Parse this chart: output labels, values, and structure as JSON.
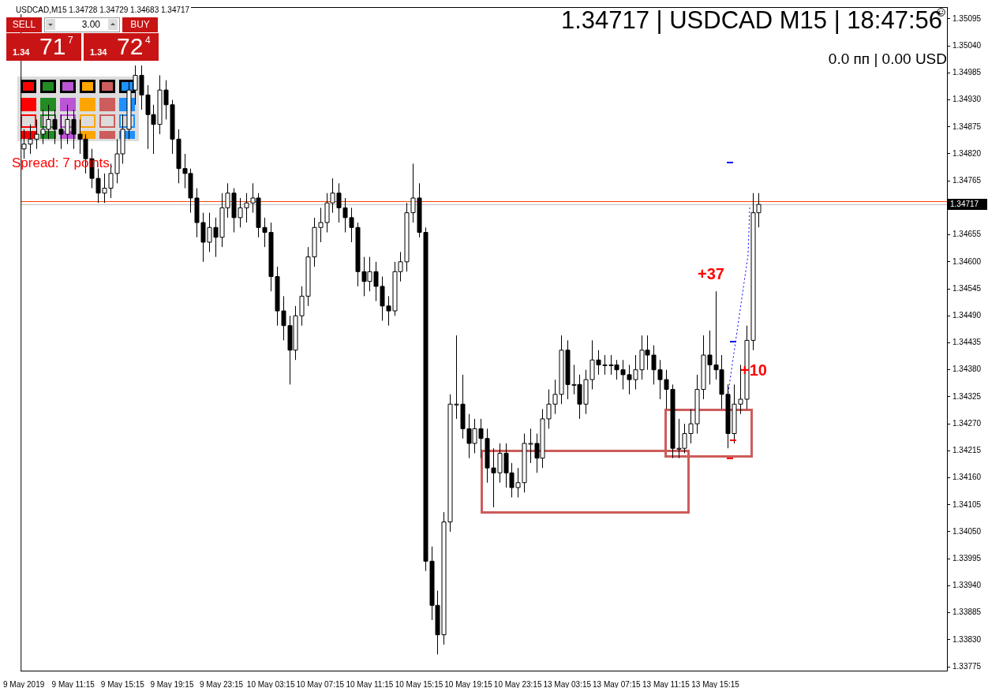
{
  "chart_data": {
    "type": "candlestick",
    "title": "1.34717 | USDCAD M15 | 18:47:56",
    "subtitle": "USDCAD,M15  1.34728 1.34729 1.34683 1.34717",
    "annotations": [
      "0.0 пп | 0.00 USD",
      "Spread: 7 points.",
      "+37",
      "+10",
      "SELL",
      "3.00",
      "BUY",
      "1.34",
      "71",
      "7",
      "1.34",
      "72",
      "4"
    ],
    "categories": [
      "9 May 2019",
      null,
      null,
      null,
      null,
      null,
      null,
      null,
      "9 May 11:15",
      null,
      null,
      null,
      null,
      null,
      null,
      null,
      "9 May 15:15",
      null,
      null,
      null,
      null,
      null,
      null,
      null,
      "9 May 19:15",
      null,
      null,
      null,
      null,
      null,
      null,
      null,
      "9 May 23:15",
      null,
      null,
      null,
      null,
      null,
      null,
      null,
      "10 May 03:15",
      null,
      null,
      null,
      null,
      null,
      null,
      null,
      "10 May 07:15",
      null,
      null,
      null,
      null,
      null,
      null,
      null,
      "10 May 11:15",
      null,
      null,
      null,
      null,
      null,
      null,
      null,
      "10 May 15:15",
      null,
      null,
      null,
      null,
      null,
      null,
      null,
      "10 May 19:15",
      null,
      null,
      null,
      null,
      null,
      null,
      null,
      "10 May 23:15",
      null,
      null,
      null,
      null,
      null,
      null,
      null,
      "13 May 03:15",
      null,
      null,
      null,
      null,
      null,
      null,
      null,
      "13 May 07:15",
      null,
      null,
      null,
      null,
      null,
      null,
      null,
      "13 May 11:15",
      null,
      null,
      null,
      null,
      null,
      null,
      null,
      "13 May 15:15",
      null,
      null,
      null,
      null,
      null,
      null,
      null,
      null,
      null,
      null,
      null,
      null,
      null,
      null,
      null,
      null,
      null,
      null,
      null,
      null,
      null,
      null,
      null,
      null,
      null,
      null,
      null,
      null,
      null,
      null,
      null,
      null,
      null,
      null,
      null,
      null,
      null
    ],
    "ohlc": [
      [
        1.3483,
        1.3487,
        1.3481,
        1.3484
      ],
      [
        1.3484,
        1.3488,
        1.3482,
        1.3485
      ],
      [
        1.3485,
        1.3489,
        1.3483,
        1.3486
      ],
      [
        1.3486,
        1.3491,
        1.3484,
        1.3487
      ],
      [
        1.3487,
        1.3492,
        1.3485,
        1.3489
      ],
      [
        1.3489,
        1.3491,
        1.3484,
        1.3487
      ],
      [
        1.3487,
        1.349,
        1.3483,
        1.3486
      ],
      [
        1.3486,
        1.3492,
        1.3484,
        1.3489
      ],
      [
        1.3489,
        1.3491,
        1.3483,
        1.3486
      ],
      [
        1.3486,
        1.3489,
        1.3482,
        1.3485
      ],
      [
        1.3485,
        1.3486,
        1.3478,
        1.3481
      ],
      [
        1.3481,
        1.3483,
        1.3475,
        1.3477
      ],
      [
        1.3477,
        1.3479,
        1.3472,
        1.3474
      ],
      [
        1.3474,
        1.3478,
        1.3472,
        1.3475
      ],
      [
        1.3475,
        1.348,
        1.3473,
        1.3478
      ],
      [
        1.3478,
        1.3485,
        1.3476,
        1.3482
      ],
      [
        1.3482,
        1.349,
        1.348,
        1.3487
      ],
      [
        1.3487,
        1.3497,
        1.3485,
        1.3495
      ],
      [
        1.3495,
        1.35,
        1.3492,
        1.3498
      ],
      [
        1.3498,
        1.35,
        1.3491,
        1.3494
      ],
      [
        1.3494,
        1.3496,
        1.3483,
        1.349
      ],
      [
        1.349,
        1.3492,
        1.3482,
        1.3488
      ],
      [
        1.3488,
        1.3498,
        1.3486,
        1.3495
      ],
      [
        1.3495,
        1.3497,
        1.3489,
        1.3492
      ],
      [
        1.3492,
        1.3493,
        1.3482,
        1.3485
      ],
      [
        1.3485,
        1.3487,
        1.3476,
        1.3479
      ],
      [
        1.3479,
        1.3482,
        1.3475,
        1.3478
      ],
      [
        1.3478,
        1.3479,
        1.347,
        1.3473
      ],
      [
        1.3473,
        1.3475,
        1.3465,
        1.3468
      ],
      [
        1.3468,
        1.347,
        1.346,
        1.3464
      ],
      [
        1.3464,
        1.347,
        1.3462,
        1.3467
      ],
      [
        1.3467,
        1.3469,
        1.3461,
        1.3465
      ],
      [
        1.3465,
        1.3474,
        1.3463,
        1.3471
      ],
      [
        1.3471,
        1.3476,
        1.3469,
        1.3474
      ],
      [
        1.3474,
        1.3475,
        1.3466,
        1.3469
      ],
      [
        1.3469,
        1.3473,
        1.3467,
        1.3471
      ],
      [
        1.3471,
        1.3474,
        1.3468,
        1.3472
      ],
      [
        1.3472,
        1.3476,
        1.347,
        1.3473
      ],
      [
        1.3473,
        1.3474,
        1.3465,
        1.3467
      ],
      [
        1.3467,
        1.3469,
        1.3463,
        1.3466
      ],
      [
        1.3466,
        1.3468,
        1.3454,
        1.3457
      ],
      [
        1.3457,
        1.3459,
        1.3447,
        1.345
      ],
      [
        1.345,
        1.3453,
        1.3444,
        1.3447
      ],
      [
        1.3447,
        1.3449,
        1.3435,
        1.3442
      ],
      [
        1.3442,
        1.3451,
        1.344,
        1.3449
      ],
      [
        1.3449,
        1.3455,
        1.3447,
        1.3453
      ],
      [
        1.3453,
        1.3463,
        1.3451,
        1.3461
      ],
      [
        1.3461,
        1.3469,
        1.3459,
        1.3467
      ],
      [
        1.3467,
        1.3471,
        1.3464,
        1.3468
      ],
      [
        1.3468,
        1.3474,
        1.3466,
        1.3472
      ],
      [
        1.3472,
        1.3477,
        1.347,
        1.3474
      ],
      [
        1.3474,
        1.3476,
        1.3468,
        1.3471
      ],
      [
        1.3471,
        1.3473,
        1.3466,
        1.3469
      ],
      [
        1.3469,
        1.3471,
        1.3464,
        1.3467
      ],
      [
        1.3467,
        1.3468,
        1.3455,
        1.3458
      ],
      [
        1.3458,
        1.3461,
        1.3453,
        1.3456
      ],
      [
        1.3456,
        1.3461,
        1.3454,
        1.3458
      ],
      [
        1.3458,
        1.346,
        1.3452,
        1.3455
      ],
      [
        1.3455,
        1.3457,
        1.3448,
        1.3451
      ],
      [
        1.3451,
        1.3453,
        1.3447,
        1.345
      ],
      [
        1.345,
        1.346,
        1.3449,
        1.3458
      ],
      [
        1.3458,
        1.3462,
        1.3456,
        1.346
      ],
      [
        1.346,
        1.3472,
        1.3458,
        1.347
      ],
      [
        1.347,
        1.348,
        1.3468,
        1.3473
      ],
      [
        1.3473,
        1.3476,
        1.3465,
        1.3466
      ],
      [
        1.3466,
        1.3467,
        1.3397,
        1.3399
      ],
      [
        1.3399,
        1.3402,
        1.3387,
        1.339
      ],
      [
        1.339,
        1.3393,
        1.338,
        1.3384
      ],
      [
        1.3384,
        1.3409,
        1.3382,
        1.3407
      ],
      [
        1.3407,
        1.3433,
        1.3405,
        1.3431
      ],
      [
        1.3431,
        1.3445,
        1.3428,
        1.3431
      ],
      [
        1.3431,
        1.3437,
        1.3424,
        1.3426
      ],
      [
        1.3426,
        1.3429,
        1.342,
        1.3423
      ],
      [
        1.3423,
        1.3428,
        1.3421,
        1.3426
      ],
      [
        1.3426,
        1.3428,
        1.342,
        1.3424
      ],
      [
        1.3424,
        1.3426,
        1.3415,
        1.3418
      ],
      [
        1.3418,
        1.3422,
        1.341,
        1.3417
      ],
      [
        1.3417,
        1.3423,
        1.3415,
        1.3421
      ],
      [
        1.3421,
        1.3423,
        1.3414,
        1.3417
      ],
      [
        1.3417,
        1.3419,
        1.3412,
        1.3414
      ],
      [
        1.3414,
        1.3418,
        1.3412,
        1.3415
      ],
      [
        1.3415,
        1.3425,
        1.3413,
        1.3423
      ],
      [
        1.3423,
        1.3426,
        1.3419,
        1.3423
      ],
      [
        1.3423,
        1.3425,
        1.3417,
        1.342
      ],
      [
        1.342,
        1.343,
        1.3418,
        1.3428
      ],
      [
        1.3428,
        1.3434,
        1.3426,
        1.3431
      ],
      [
        1.3431,
        1.3436,
        1.3429,
        1.3433
      ],
      [
        1.3433,
        1.3445,
        1.3431,
        1.3442
      ],
      [
        1.3442,
        1.3444,
        1.3432,
        1.3435
      ],
      [
        1.3435,
        1.3439,
        1.3433,
        1.3435
      ],
      [
        1.3435,
        1.3437,
        1.3428,
        1.3431
      ],
      [
        1.3431,
        1.3438,
        1.3429,
        1.3436
      ],
      [
        1.3436,
        1.3444,
        1.3434,
        1.344
      ],
      [
        1.344,
        1.3442,
        1.3437,
        1.3439
      ],
      [
        1.3439,
        1.3441,
        1.3437,
        1.3439
      ],
      [
        1.3439,
        1.3441,
        1.3437,
        1.3439
      ],
      [
        1.3439,
        1.344,
        1.3436,
        1.3438
      ],
      [
        1.3438,
        1.344,
        1.3434,
        1.3437
      ],
      [
        1.3437,
        1.3439,
        1.3433,
        1.3436
      ],
      [
        1.3436,
        1.3441,
        1.3434,
        1.3438
      ],
      [
        1.3438,
        1.3445,
        1.3436,
        1.3442
      ],
      [
        1.3442,
        1.3445,
        1.3438,
        1.3441
      ],
      [
        1.3441,
        1.3443,
        1.3435,
        1.3438
      ],
      [
        1.3438,
        1.344,
        1.3432,
        1.3436
      ],
      [
        1.3436,
        1.3438,
        1.343,
        1.3434
      ],
      [
        1.3434,
        1.3435,
        1.342,
        1.3422
      ],
      [
        1.3422,
        1.3428,
        1.342,
        1.3422
      ],
      [
        1.3422,
        1.3427,
        1.3421,
        1.3425
      ],
      [
        1.3425,
        1.343,
        1.3423,
        1.3427
      ],
      [
        1.3427,
        1.3437,
        1.3425,
        1.3434
      ],
      [
        1.3434,
        1.3445,
        1.3432,
        1.3441
      ],
      [
        1.3441,
        1.3446,
        1.3435,
        1.3439
      ],
      [
        1.3439,
        1.3454,
        1.3436,
        1.3438
      ],
      [
        1.3438,
        1.3441,
        1.343,
        1.3433
      ],
      [
        1.3433,
        1.3435,
        1.3422,
        1.3425
      ],
      [
        1.3425,
        1.3435,
        1.3423,
        1.3431
      ],
      [
        1.3431,
        1.3439,
        1.3429,
        1.3432
      ],
      [
        1.3432,
        1.3447,
        1.343,
        1.3444
      ],
      [
        1.3444,
        1.3474,
        1.3442,
        1.347
      ],
      [
        1.347,
        1.3474,
        1.3467,
        1.34717
      ],
      null,
      null,
      null,
      null,
      null,
      null,
      null,
      null,
      null,
      null,
      null,
      null,
      null,
      null,
      null,
      null,
      null,
      null,
      null,
      null,
      null,
      null,
      null,
      null,
      null,
      null,
      null,
      null,
      null,
      null
    ],
    "ylim": [
      1.33767,
      1.35119
    ],
    "yticks": [
      1.33775,
      {
        "value": 1.3383,
        "label": "1.33830"
      },
      1.33885,
      {
        "value": 1.3394,
        "label": "1.33940"
      },
      1.33995,
      {
        "value": 1.3405,
        "label": "1.34050"
      },
      1.34105,
      {
        "value": 1.3416,
        "label": "1.34160"
      },
      1.34215,
      {
        "value": 1.3427,
        "label": "1.34270"
      },
      1.34325,
      {
        "value": 1.3438,
        "label": "1.34380"
      },
      1.34435,
      {
        "value": 1.3449,
        "label": "1.34490"
      },
      1.34545,
      {
        "value": 1.346,
        "label": "1.34600"
      },
      1.34655,
      1.34765,
      {
        "value": 1.3482,
        "label": "1.34820"
      },
      1.34875,
      {
        "value": 1.3493,
        "label": "1.34930"
      },
      1.34985,
      {
        "value": 1.3504,
        "label": "1.35040"
      },
      1.35095
    ],
    "ref_lines": [
      {
        "axis": "y",
        "value": 1.34724,
        "color": "#ff4500"
      },
      {
        "axis": "y",
        "value": 1.34717,
        "label": "1.34717",
        "color": "#c0c0c0"
      }
    ],
    "grid": false,
    "legend": false
  }
}
